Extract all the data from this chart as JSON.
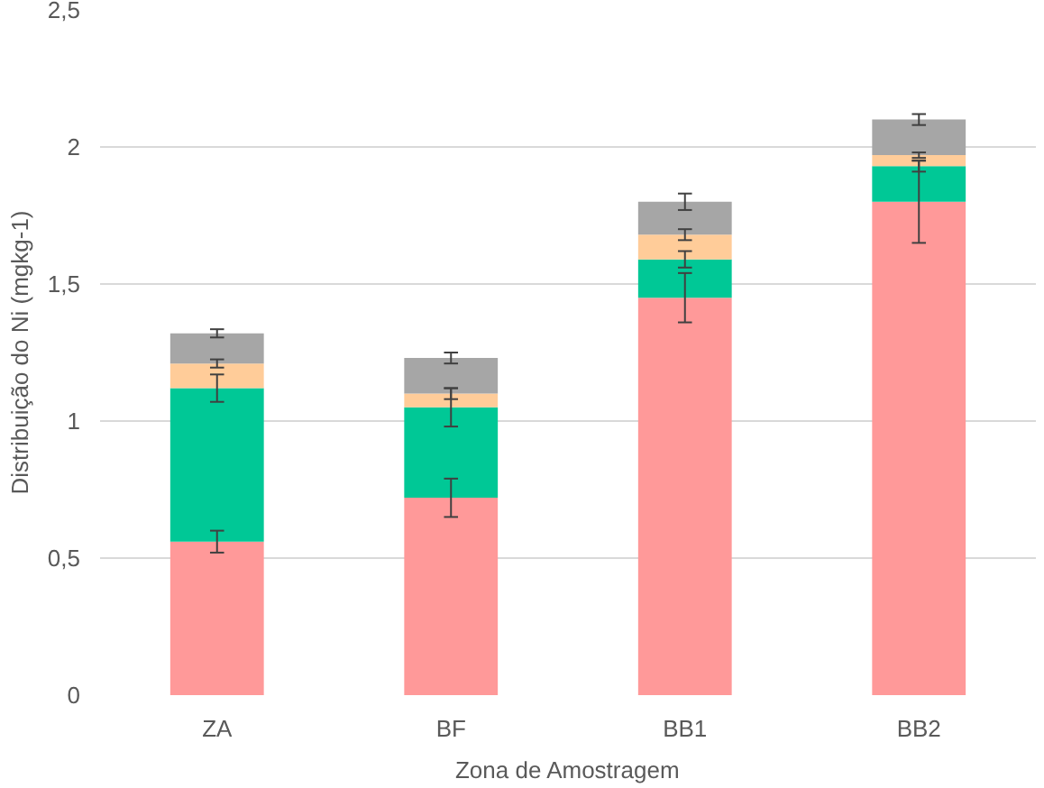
{
  "chart_data": {
    "type": "bar",
    "stacked": true,
    "xlabel": "Zona de Amostragem",
    "ylabel": "Distribuição do Ni (mgkg-1)",
    "categories": [
      "ZA",
      "BF",
      "BB1",
      "BB2"
    ],
    "series": [
      {
        "color": "#ff9999",
        "values": [
          0.56,
          0.72,
          1.45,
          1.8
        ],
        "errors": [
          0.04,
          0.07,
          0.09,
          0.15
        ]
      },
      {
        "color": "#00c896",
        "values": [
          0.56,
          0.33,
          0.14,
          0.13
        ],
        "errors": [
          0.05,
          0.07,
          0.03,
          0.02
        ]
      },
      {
        "color": "#ffcc99",
        "values": [
          0.09,
          0.05,
          0.09,
          0.04
        ],
        "errors": [
          0.015,
          0.02,
          0.02,
          0.01
        ]
      },
      {
        "color": "#a6a6a6",
        "values": [
          0.11,
          0.13,
          0.12,
          0.13
        ],
        "errors": [
          0.015,
          0.02,
          0.03,
          0.02
        ]
      }
    ],
    "ylim": [
      0,
      2.5
    ],
    "yticks": [
      0,
      {
        "value": 0.5,
        "label": "0,5"
      },
      1,
      {
        "value": 1.5,
        "label": "1,5"
      },
      2,
      {
        "value": 2.5,
        "label": "2,5"
      }
    ],
    "grid": "y"
  }
}
